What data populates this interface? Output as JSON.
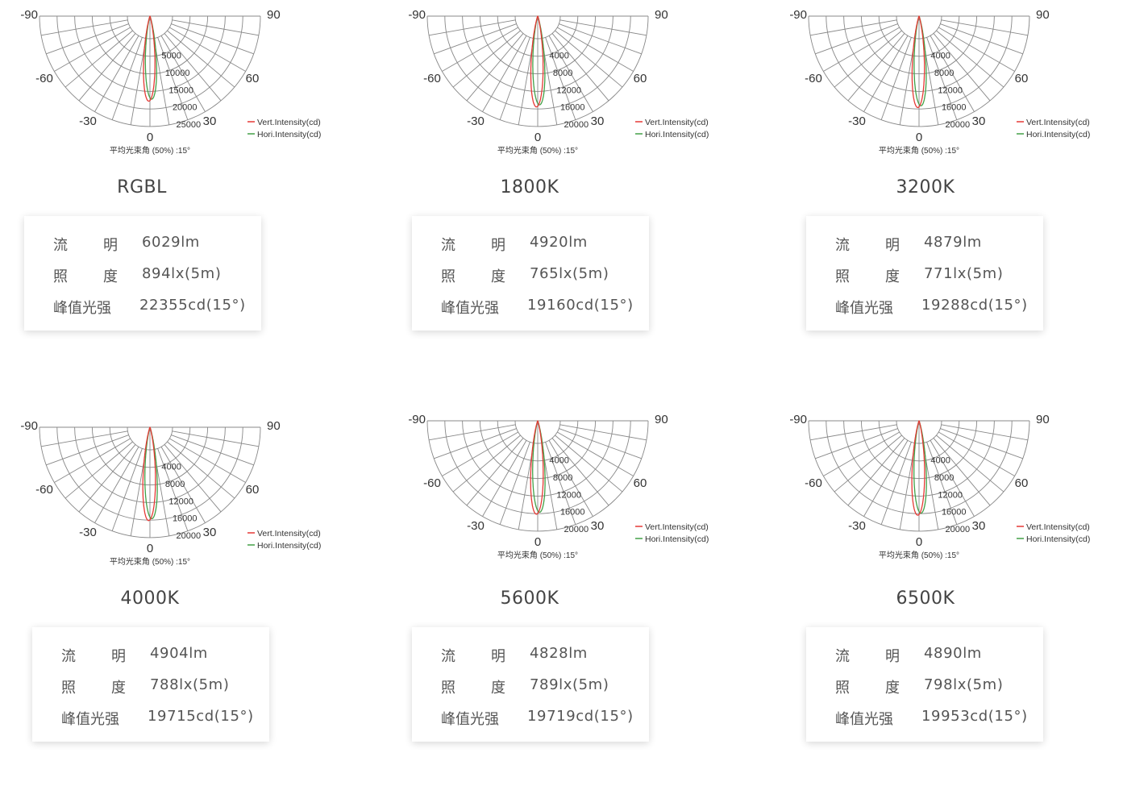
{
  "labels": {
    "beam": "平均光束角 (50%) :15°",
    "vert": "Vert.Intensity(cd)",
    "hori": "Hori.Intensity(cd)",
    "flux": "流 明",
    "illum": "照 度",
    "peak": "峰值光强"
  },
  "colors": {
    "vert": "#e53935",
    "hori": "#43a047",
    "grid": "#888888"
  },
  "panels": [
    {
      "name": "RGBL",
      "flux": "6029lm",
      "illum": "894lx(5m)",
      "peak": "22355cd(15°)"
    },
    {
      "name": "1800K",
      "flux": "4920lm",
      "illum": "765lx(5m)",
      "peak": "19160cd(15°)"
    },
    {
      "name": "3200K",
      "flux": "4879lm",
      "illum": "771lx(5m)",
      "peak": "19288cd(15°)"
    },
    {
      "name": "4000K",
      "flux": "4904lm",
      "illum": "788lx(5m)",
      "peak": "19715cd(15°)"
    },
    {
      "name": "5600K",
      "flux": "4828lm",
      "illum": "789lx(5m)",
      "peak": "19719cd(15°)"
    },
    {
      "name": "6500K",
      "flux": "4890lm",
      "illum": "798lx(5m)",
      "peak": "19953cd(15°)"
    }
  ],
  "chart_data": [
    {
      "type": "polar",
      "title": "RGBL",
      "angle_ticks": [
        -90,
        -60,
        -30,
        0,
        30,
        60,
        90
      ],
      "radial_ticks": [
        5000,
        10000,
        15000,
        20000,
        25000
      ],
      "rlim": [
        0,
        25000
      ],
      "beam_angle_deg": 15,
      "series": [
        {
          "name": "Vert.Intensity(cd)",
          "peak_cd": 22355,
          "half_width_deg": 7.5
        },
        {
          "name": "Hori.Intensity(cd)",
          "peak_cd": 21800,
          "half_width_deg": 7.5
        }
      ]
    },
    {
      "type": "polar",
      "title": "1800K",
      "angle_ticks": [
        -90,
        -60,
        -30,
        0,
        30,
        60,
        90
      ],
      "radial_ticks": [
        4000,
        8000,
        12000,
        16000,
        20000
      ],
      "rlim": [
        0,
        20000
      ],
      "beam_angle_deg": 15,
      "series": [
        {
          "name": "Vert.Intensity(cd)",
          "peak_cd": 19160,
          "half_width_deg": 7.5
        },
        {
          "name": "Hori.Intensity(cd)",
          "peak_cd": 18700,
          "half_width_deg": 7.5
        }
      ]
    },
    {
      "type": "polar",
      "title": "3200K",
      "angle_ticks": [
        -90,
        -60,
        -30,
        0,
        30,
        60,
        90
      ],
      "radial_ticks": [
        4000,
        8000,
        12000,
        16000,
        20000
      ],
      "rlim": [
        0,
        20000
      ],
      "beam_angle_deg": 15,
      "series": [
        {
          "name": "Vert.Intensity(cd)",
          "peak_cd": 19288,
          "half_width_deg": 7.5
        },
        {
          "name": "Hori.Intensity(cd)",
          "peak_cd": 18900,
          "half_width_deg": 7.5
        }
      ]
    },
    {
      "type": "polar",
      "title": "4000K",
      "angle_ticks": [
        -90,
        -60,
        -30,
        0,
        30,
        60,
        90
      ],
      "radial_ticks": [
        4000,
        8000,
        12000,
        16000,
        20000
      ],
      "rlim": [
        0,
        20000
      ],
      "beam_angle_deg": 15,
      "series": [
        {
          "name": "Vert.Intensity(cd)",
          "peak_cd": 19715,
          "half_width_deg": 7.5
        },
        {
          "name": "Hori.Intensity(cd)",
          "peak_cd": 19300,
          "half_width_deg": 7.5
        }
      ]
    },
    {
      "type": "polar",
      "title": "5600K",
      "angle_ticks": [
        -90,
        -60,
        -30,
        0,
        30,
        60,
        90
      ],
      "radial_ticks": [
        4000,
        8000,
        12000,
        16000,
        20000
      ],
      "rlim": [
        0,
        20000
      ],
      "beam_angle_deg": 15,
      "series": [
        {
          "name": "Vert.Intensity(cd)",
          "peak_cd": 19719,
          "half_width_deg": 7.5
        },
        {
          "name": "Hori.Intensity(cd)",
          "peak_cd": 19300,
          "half_width_deg": 7.5
        }
      ]
    },
    {
      "type": "polar",
      "title": "6500K",
      "angle_ticks": [
        -90,
        -60,
        -30,
        0,
        30,
        60,
        90
      ],
      "radial_ticks": [
        4000,
        8000,
        12000,
        16000,
        20000
      ],
      "rlim": [
        0,
        20000
      ],
      "beam_angle_deg": 15,
      "series": [
        {
          "name": "Vert.Intensity(cd)",
          "peak_cd": 19953,
          "half_width_deg": 7.5
        },
        {
          "name": "Hori.Intensity(cd)",
          "peak_cd": 19500,
          "half_width_deg": 7.5
        }
      ]
    }
  ]
}
